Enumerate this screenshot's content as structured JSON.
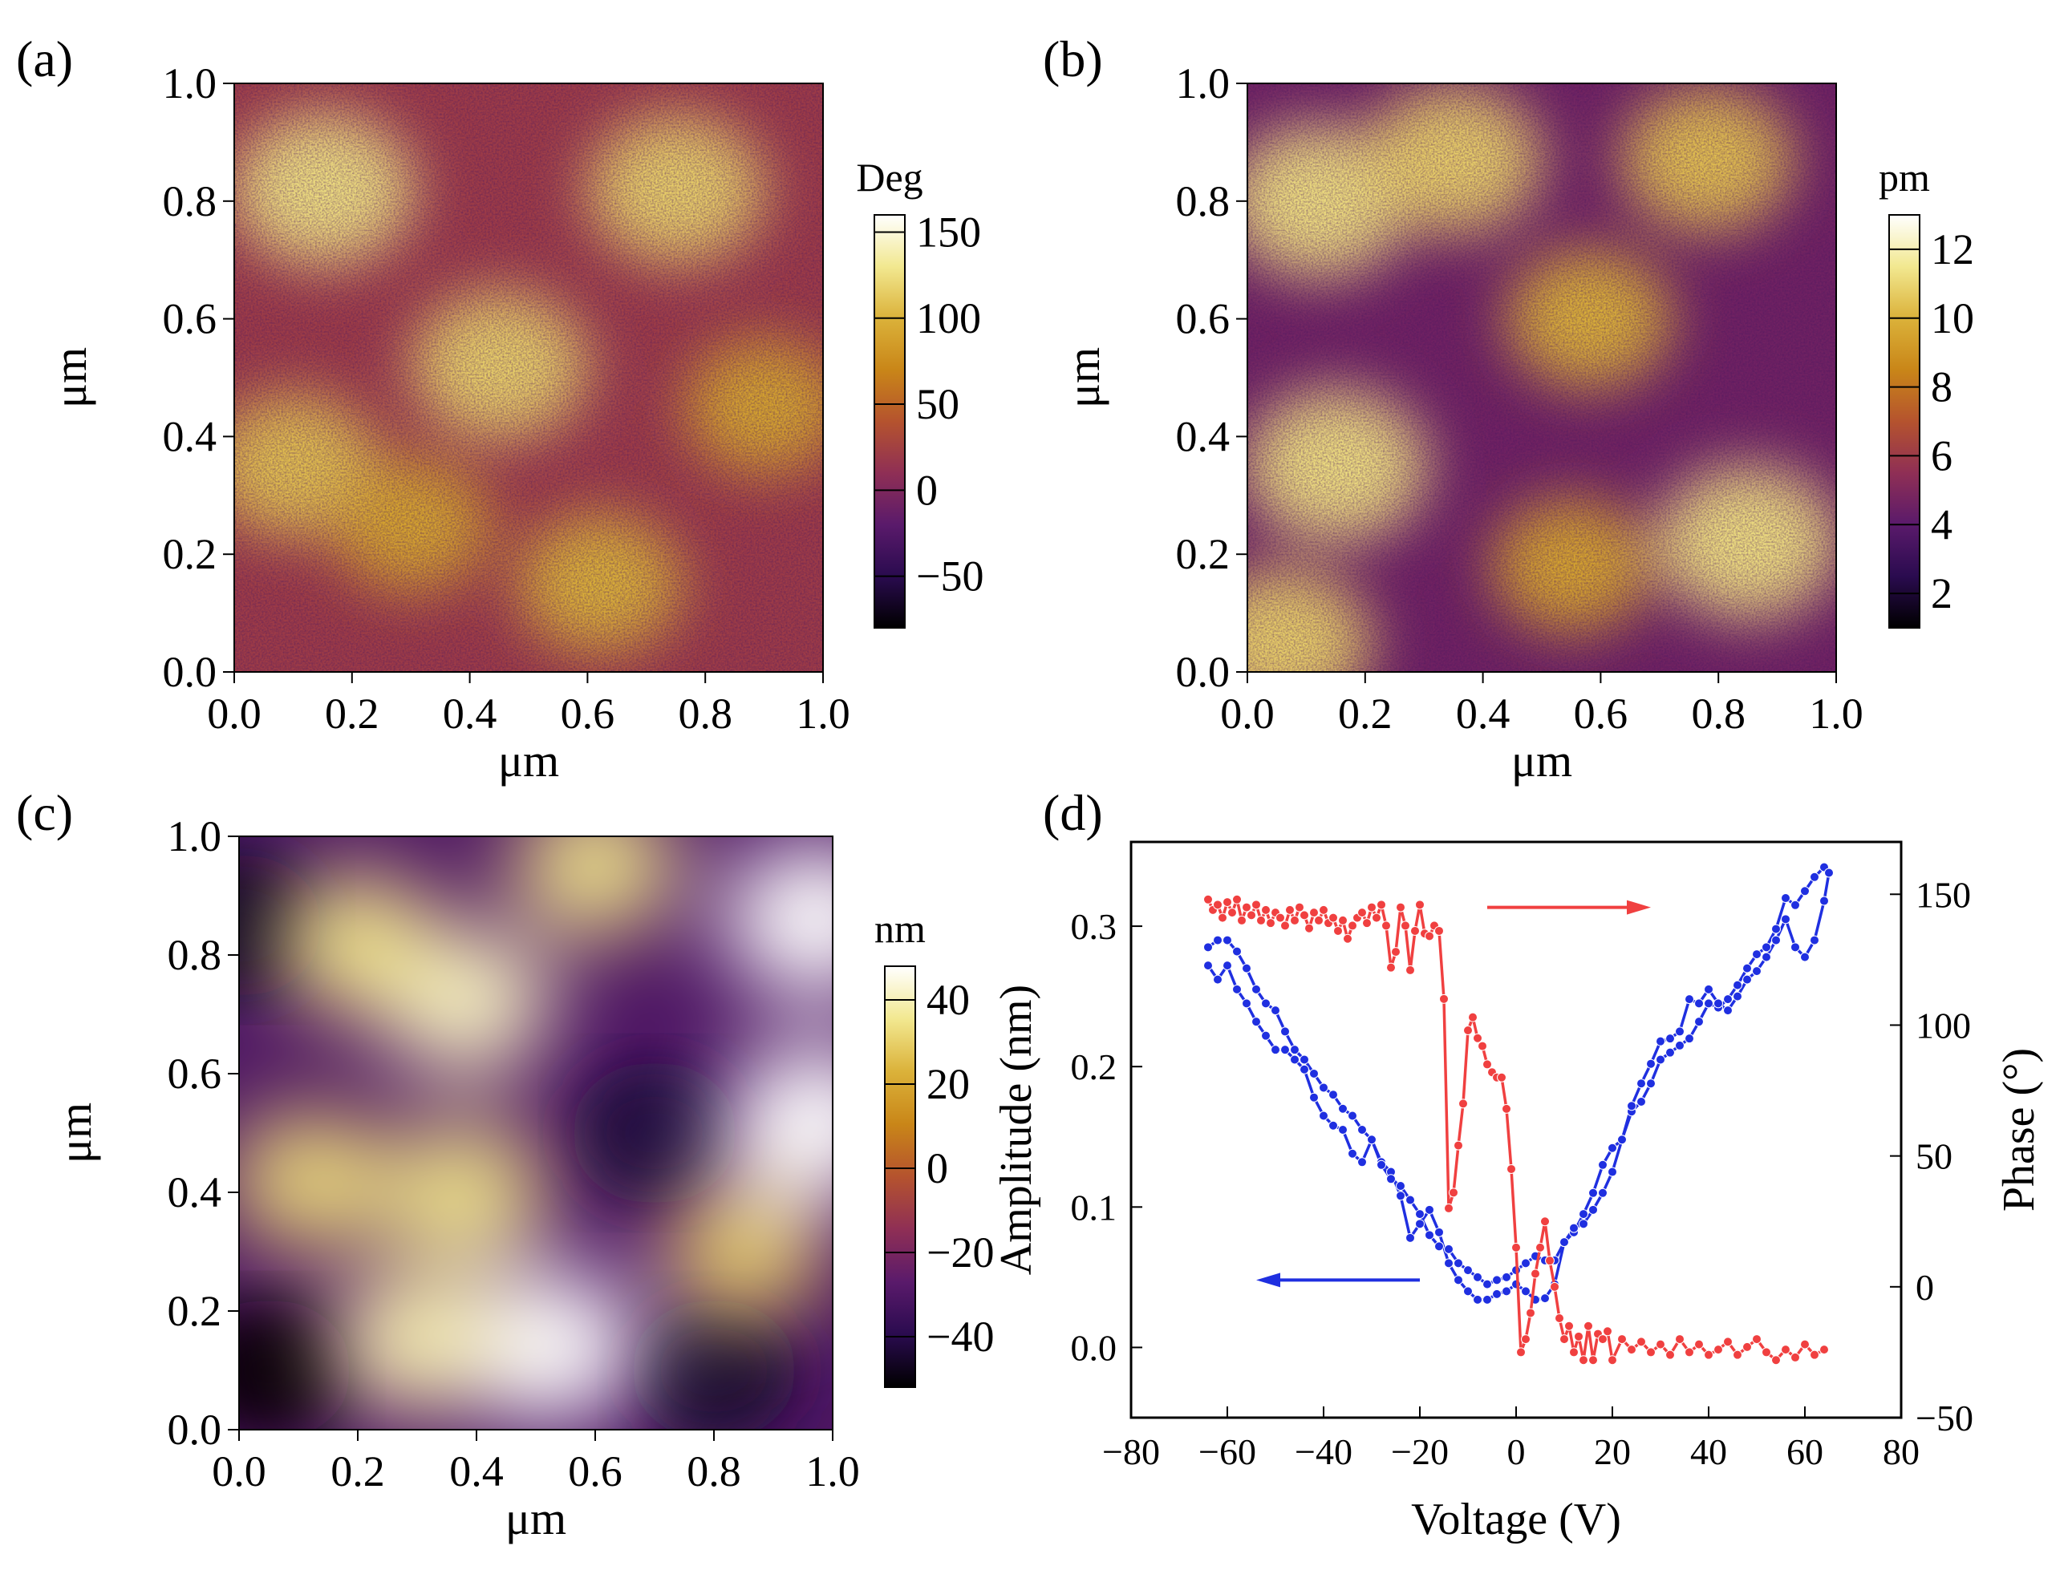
{
  "colors": {
    "cmap": [
      "#000000",
      "#2a0b4f",
      "#5a1a6b",
      "#8f2f55",
      "#b5532e",
      "#c98618",
      "#dbb23a",
      "#f2e890",
      "#ffffff"
    ],
    "amplitude_series": "#1f2fe0",
    "phase_series": "#f04040",
    "axis": "#000000"
  },
  "chart_data": [
    {
      "panel": "(a)",
      "type": "heatmap",
      "xlabel": "μm",
      "ylabel": "μm",
      "xlim": [
        0,
        1
      ],
      "ylim": [
        0,
        1
      ],
      "x_ticks": [
        "0.0",
        "0.2",
        "0.4",
        "0.6",
        "0.8",
        "1.0"
      ],
      "y_ticks": [
        "0.0",
        "0.2",
        "0.4",
        "0.6",
        "0.8",
        "1.0"
      ],
      "colorbar": {
        "unit": "Deg",
        "range": [
          -80,
          160
        ],
        "ticks": [
          -50,
          0,
          50,
          100,
          150
        ],
        "tick_labels": [
          "−50",
          "0",
          "50",
          "100",
          "150"
        ]
      },
      "texture": "noisy",
      "blobs": [
        {
          "x": 0.15,
          "y": 0.82,
          "v": 1.0
        },
        {
          "x": 0.45,
          "y": 0.52,
          "v": 0.9
        },
        {
          "x": 0.75,
          "y": 0.82,
          "v": 0.9
        },
        {
          "x": 0.1,
          "y": 0.35,
          "v": 0.8
        },
        {
          "x": 0.62,
          "y": 0.15,
          "v": 0.7
        },
        {
          "x": 0.3,
          "y": 0.25,
          "v": 0.6
        },
        {
          "x": 0.9,
          "y": 0.45,
          "v": 0.6
        }
      ]
    },
    {
      "panel": "(b)",
      "type": "heatmap",
      "xlabel": "μm",
      "ylabel": "μm",
      "xlim": [
        0,
        1
      ],
      "ylim": [
        0,
        1
      ],
      "x_ticks": [
        "0.0",
        "0.2",
        "0.4",
        "0.6",
        "0.8",
        "1.0"
      ],
      "y_ticks": [
        "0.0",
        "0.2",
        "0.4",
        "0.6",
        "0.8",
        "1.0"
      ],
      "colorbar": {
        "unit": "pm",
        "range": [
          1,
          13
        ],
        "ticks": [
          2,
          4,
          6,
          8,
          10,
          12
        ],
        "tick_labels": [
          "2",
          "4",
          "6",
          "8",
          "10",
          "12"
        ]
      },
      "texture": "noisy",
      "blobs": [
        {
          "x": 0.12,
          "y": 0.8,
          "v": 1.0
        },
        {
          "x": 0.35,
          "y": 0.87,
          "v": 0.9
        },
        {
          "x": 0.78,
          "y": 0.87,
          "v": 0.8
        },
        {
          "x": 0.15,
          "y": 0.35,
          "v": 1.0
        },
        {
          "x": 0.85,
          "y": 0.22,
          "v": 1.0
        },
        {
          "x": 0.06,
          "y": 0.05,
          "v": 0.9
        },
        {
          "x": 0.58,
          "y": 0.6,
          "v": 0.7
        },
        {
          "x": 0.55,
          "y": 0.18,
          "v": 0.6
        }
      ]
    },
    {
      "panel": "(c)",
      "type": "heatmap",
      "xlabel": "μm",
      "ylabel": "μm",
      "xlim": [
        0,
        1
      ],
      "ylim": [
        0,
        1
      ],
      "x_ticks": [
        "0.0",
        "0.2",
        "0.4",
        "0.6",
        "0.8",
        "1.0"
      ],
      "y_ticks": [
        "0.0",
        "0.2",
        "0.4",
        "0.6",
        "0.8",
        "1.0"
      ],
      "colorbar": {
        "unit": "nm",
        "range": [
          -52,
          48
        ],
        "ticks": [
          -40,
          -20,
          0,
          20,
          40
        ],
        "tick_labels": [
          "−40",
          "−20",
          "0",
          "20",
          "40"
        ]
      },
      "texture": "smooth",
      "blobs": [
        {
          "x": 0.52,
          "y": 0.14,
          "v": 1.0
        },
        {
          "x": 0.38,
          "y": 0.72,
          "v": 0.85
        },
        {
          "x": 0.97,
          "y": 0.86,
          "v": 1.0
        },
        {
          "x": 0.97,
          "y": 0.52,
          "v": 1.0
        },
        {
          "x": 0.2,
          "y": 0.82,
          "v": 0.7
        },
        {
          "x": 0.12,
          "y": 0.42,
          "v": 0.65
        },
        {
          "x": 0.38,
          "y": 0.4,
          "v": 0.7
        },
        {
          "x": 0.6,
          "y": 0.95,
          "v": 0.7
        },
        {
          "x": 0.85,
          "y": 0.3,
          "v": 0.6
        },
        {
          "x": 0.3,
          "y": 0.15,
          "v": 0.8
        }
      ]
    },
    {
      "panel": "(d)",
      "type": "line",
      "xlabel": "Voltage (V)",
      "ylabel": "Amplitude (nm)",
      "ylabel_right": "Phase (°)",
      "xlim": [
        -80,
        80
      ],
      "ylim": [
        -0.05,
        0.36
      ],
      "ylim_right": [
        -50,
        170
      ],
      "x_ticks": [
        -80,
        -60,
        -40,
        -20,
        0,
        20,
        40,
        60,
        80
      ],
      "x_tick_labels": [
        "−80",
        "−60",
        "−40",
        "−20",
        "0",
        "20",
        "40",
        "60",
        "80"
      ],
      "y_ticks": [
        0.0,
        0.1,
        0.2,
        0.3
      ],
      "y_tick_labels": [
        "0.0",
        "0.1",
        "0.2",
        "0.3"
      ],
      "y_ticks_right": [
        -50,
        0,
        50,
        100,
        150
      ],
      "y_tick_labels_right": [
        "−50",
        "0",
        "50",
        "100",
        "150"
      ],
      "series": [
        {
          "name": "Amplitude",
          "axis": "left",
          "color": "#1f2fe0",
          "x": [
            -64,
            -62,
            -60,
            -58,
            -56,
            -54,
            -52,
            -50,
            -48,
            -46,
            -44,
            -42,
            -40,
            -38,
            -36,
            -34,
            -32,
            -30,
            -28,
            -26,
            -24,
            -22,
            -20,
            -18,
            -16,
            -14,
            -12,
            -10,
            -8,
            -6,
            -4,
            -2,
            0,
            2,
            4,
            6,
            8,
            10,
            12,
            14,
            16,
            18,
            20,
            22,
            24,
            26,
            28,
            30,
            32,
            34,
            36,
            38,
            40,
            42,
            44,
            46,
            48,
            50,
            52,
            54,
            56,
            58,
            60,
            62,
            64,
            65,
            64,
            62,
            60,
            58,
            56,
            54,
            52,
            50,
            48,
            46,
            44,
            42,
            40,
            38,
            36,
            34,
            32,
            30,
            28,
            26,
            24,
            22,
            20,
            18,
            16,
            14,
            12,
            10,
            8,
            6,
            4,
            2,
            0,
            -2,
            -4,
            -6,
            -8,
            -10,
            -12,
            -14,
            -16,
            -18,
            -20,
            -22,
            -24,
            -26,
            -28,
            -30,
            -32,
            -34,
            -36,
            -38,
            -40,
            -42,
            -44,
            -46,
            -48,
            -50,
            -52,
            -54,
            -56,
            -58,
            -60,
            -62,
            -64
          ],
          "y": [
            0.272,
            0.262,
            0.272,
            0.255,
            0.245,
            0.232,
            0.222,
            0.212,
            0.212,
            0.205,
            0.198,
            0.178,
            0.165,
            0.158,
            0.155,
            0.138,
            0.132,
            0.148,
            0.132,
            0.125,
            0.108,
            0.078,
            0.088,
            0.098,
            0.082,
            0.06,
            0.048,
            0.04,
            0.034,
            0.034,
            0.038,
            0.04,
            0.045,
            0.04,
            0.034,
            0.035,
            0.045,
            0.075,
            0.082,
            0.095,
            0.11,
            0.13,
            0.142,
            0.148,
            0.168,
            0.175,
            0.188,
            0.205,
            0.21,
            0.215,
            0.22,
            0.232,
            0.245,
            0.242,
            0.248,
            0.258,
            0.27,
            0.28,
            0.285,
            0.298,
            0.32,
            0.315,
            0.325,
            0.335,
            0.342,
            0.338,
            0.318,
            0.29,
            0.278,
            0.285,
            0.305,
            0.29,
            0.278,
            0.268,
            0.262,
            0.25,
            0.24,
            0.245,
            0.255,
            0.245,
            0.248,
            0.225,
            0.22,
            0.218,
            0.202,
            0.188,
            0.172,
            0.148,
            0.125,
            0.11,
            0.098,
            0.088,
            0.085,
            0.075,
            0.062,
            0.062,
            0.065,
            0.06,
            0.055,
            0.05,
            0.048,
            0.045,
            0.05,
            0.055,
            0.06,
            0.07,
            0.072,
            0.08,
            0.095,
            0.105,
            0.115,
            0.12,
            0.13,
            0.148,
            0.155,
            0.165,
            0.17,
            0.18,
            0.185,
            0.195,
            0.205,
            0.212,
            0.225,
            0.24,
            0.245,
            0.255,
            0.27,
            0.282,
            0.29,
            0.29,
            0.285
          ]
        },
        {
          "name": "Phase",
          "axis": "right",
          "color": "#f04040",
          "x": [
            -64,
            -63,
            -62,
            -61,
            -60,
            -59,
            -58,
            -57,
            -56,
            -55,
            -54,
            -53,
            -52,
            -51,
            -50,
            -49,
            -48,
            -47,
            -46,
            -45,
            -44,
            -43,
            -42,
            -41,
            -40,
            -39,
            -38,
            -37,
            -36,
            -35,
            -34,
            -33,
            -32,
            -31,
            -30,
            -29,
            -28,
            -27,
            -26,
            -25,
            -24,
            -23,
            -22,
            -21,
            -20,
            -19,
            -18,
            -17,
            -16,
            -15,
            -14,
            -13,
            -12,
            -11,
            -10,
            -9,
            -8,
            -7,
            -6,
            -5,
            -4,
            -3,
            -2,
            -1,
            0,
            1,
            2,
            3,
            4,
            5,
            6,
            7,
            8,
            9,
            10,
            11,
            12,
            13,
            14,
            15,
            16,
            17,
            18,
            19,
            20,
            22,
            24,
            26,
            28,
            30,
            32,
            34,
            36,
            38,
            40,
            42,
            44,
            46,
            48,
            50,
            52,
            54,
            56,
            58,
            60,
            62,
            64
          ],
          "y": [
            148,
            144,
            146,
            141,
            147,
            143,
            148,
            140,
            145,
            142,
            146,
            140,
            144,
            139,
            143,
            141,
            138,
            144,
            140,
            145,
            142,
            137,
            143,
            140,
            144,
            139,
            141,
            136,
            140,
            133,
            138,
            141,
            143,
            139,
            145,
            141,
            146,
            138,
            122,
            128,
            145,
            138,
            121,
            136,
            146,
            135,
            134,
            138,
            136,
            110,
            30,
            36,
            54,
            70,
            98,
            103,
            95,
            92,
            85,
            82,
            80,
            80,
            68,
            45,
            15,
            -25,
            -20,
            -10,
            5,
            15,
            25,
            10,
            0,
            -12,
            -20,
            -15,
            -25,
            -19,
            -28,
            -15,
            -28,
            -18,
            -20,
            -17,
            -28,
            -20,
            -24,
            -21,
            -25,
            -22,
            -26,
            -20,
            -25,
            -22,
            -26,
            -24,
            -21,
            -26,
            -23,
            -20,
            -25,
            -28,
            -24,
            -27,
            -22,
            -26,
            -24
          ]
        }
      ],
      "annotations": [
        {
          "type": "arrow",
          "direction": "right",
          "series": "Phase"
        },
        {
          "type": "arrow",
          "direction": "left",
          "series": "Amplitude"
        }
      ]
    }
  ]
}
